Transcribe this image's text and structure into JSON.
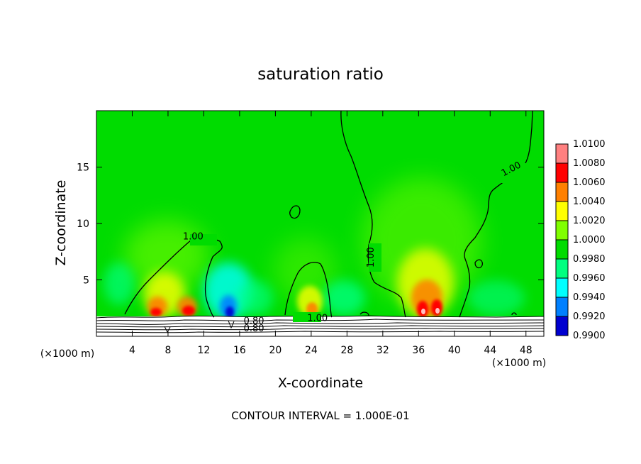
{
  "chart_data": {
    "type": "heatmap",
    "title": "saturation ratio",
    "xlabel": "X-coordinate",
    "ylabel": "Z-coordinate",
    "x_unit": "(×1000 m)",
    "y_unit": "(×1000 m)",
    "xlim": [
      0,
      50
    ],
    "ylim": [
      0,
      20
    ],
    "x_ticks": [
      4,
      8,
      12,
      16,
      20,
      24,
      28,
      32,
      36,
      40,
      44,
      48
    ],
    "y_ticks": [
      5,
      10,
      15
    ],
    "contour_interval_text": "CONTOUR INTERVAL = 1.000E-01",
    "colorbar": {
      "levels": [
        "1.0100",
        "1.0080",
        "1.0060",
        "1.0040",
        "1.0020",
        "1.0000",
        "0.9980",
        "0.9960",
        "0.9940",
        "0.9920",
        "0.9900"
      ],
      "colors": [
        "#ff8080",
        "#ff0000",
        "#ff8000",
        "#ffff00",
        "#80ff00",
        "#00dc00",
        "#00ff80",
        "#00ffff",
        "#0080ff",
        "#0000d0",
        "#8000c0"
      ]
    },
    "contour_labels": [
      {
        "text": "1.00",
        "x": 10.8,
        "z": 8.6
      },
      {
        "text": "1.00",
        "x": 24.7,
        "z": 1.35
      },
      {
        "text": "1.00",
        "x": 31.0,
        "z": 7.0
      },
      {
        "text": "1.00",
        "x": 46.5,
        "z": 14.6
      },
      {
        "text": "0.80",
        "x": 17.6,
        "z": 1.1
      },
      {
        "text": "0.80",
        "x": 17.6,
        "z": 0.45
      }
    ]
  }
}
